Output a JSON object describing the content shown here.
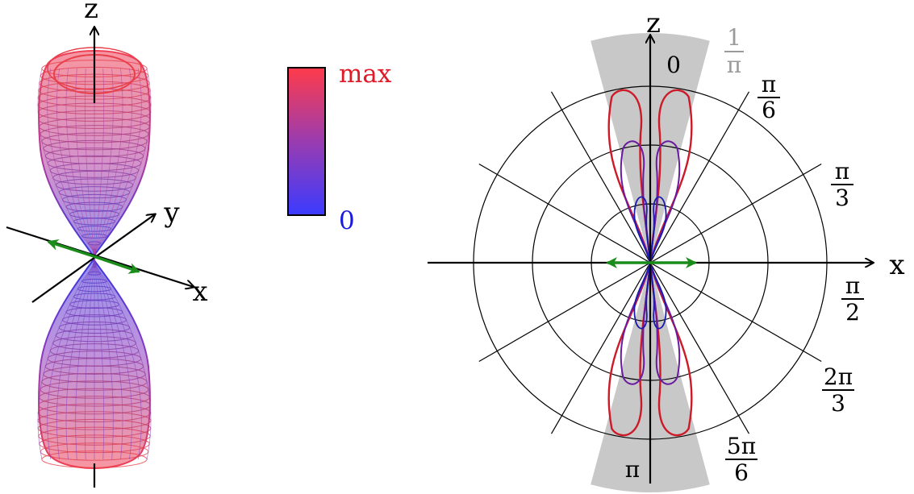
{
  "left_panel": {
    "axis_labels": {
      "z": "z",
      "y": "y",
      "x": "x"
    },
    "colors": {
      "top": "#e8404a",
      "bottom": "#3a38e0",
      "axis": "#000000",
      "arrow": "#1a8c1a"
    }
  },
  "colorbar": {
    "max_label": "max",
    "min_label": "0",
    "max_color": "#ff3b4a",
    "min_color": "#3b3bff"
  },
  "right_panel": {
    "axis_labels": {
      "z": "z",
      "x": "x"
    },
    "scale_label": {
      "num": "1",
      "den": "π"
    },
    "angle_labels": {
      "a0": "0",
      "a30": {
        "num": "π",
        "den": "6"
      },
      "a60": {
        "num": "π",
        "den": "3"
      },
      "a90": {
        "num": "π",
        "den": "2"
      },
      "a120": {
        "num": "2π",
        "den": "3"
      },
      "a150": {
        "num": "5π",
        "den": "6"
      },
      "a180": "π"
    },
    "colors": {
      "lobe_outer": "#cc1a28",
      "lobe_mid": "#6a1aa0",
      "lobe_inner": "#1a1ab0",
      "sector": "#c8c8c8",
      "arrow": "#1a8c1a"
    }
  }
}
